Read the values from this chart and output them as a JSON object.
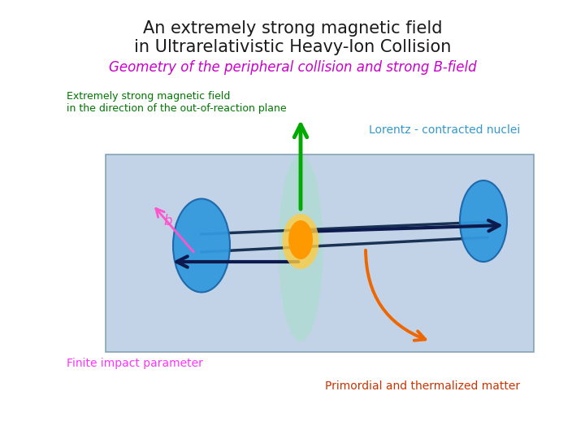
{
  "title_line1": "An extremely strong magnetic field",
  "title_line2": "in Ultrarelativistic Heavy-Ion Collision",
  "subtitle": "Geometry of the peripheral collision and strong B-field",
  "label_bfield_line1": "Extremely strong magnetic field",
  "label_bfield_line2": "in the direction of the out-of-reaction plane",
  "label_lorentz": "Lorentz - contracted nuclei",
  "label_impact": "Finite impact parameter",
  "label_matter": "Primordial and thermalized matter",
  "label_b": "b",
  "bg_color": "#ffffff",
  "box_color": "#b8cce4",
  "title_color": "#1a1a1a",
  "subtitle_color": "#cc00cc",
  "bfield_label_color": "#007700",
  "lorentz_color": "#3399cc",
  "impact_color": "#ff33ff",
  "matter_color": "#cc3300",
  "nucleus_color": "#3399dd",
  "nucleus_edge": "#1a66aa",
  "fireball_color_inner": "#ff9900",
  "fireball_color_outer": "#ffcc44",
  "arrow_color": "#0d1a4d",
  "bfield_arrow_color": "#00aa00",
  "glow_color": "#aaddcc",
  "b_arrow_color": "#ff55cc",
  "orange_arrow_color": "#ee6600"
}
